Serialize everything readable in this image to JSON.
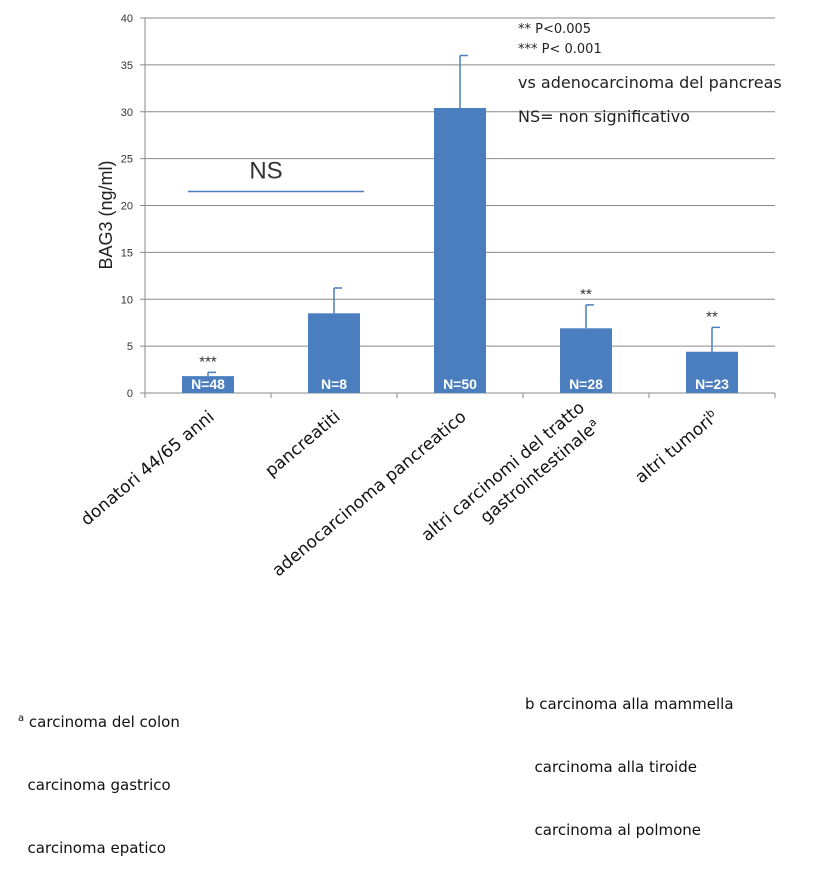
{
  "chart_data": {
    "type": "bar",
    "ylabel": "BAG3 (ng/ml)",
    "ylim": [
      0,
      40
    ],
    "yticks": [
      0,
      5,
      10,
      15,
      20,
      25,
      30,
      35,
      40
    ],
    "grid": true,
    "categories": [
      [
        "donatori 44/65 anni"
      ],
      [
        "pancreatiti"
      ],
      [
        "adenocarcinoma pancreatico"
      ],
      [
        "altri carcinomi del tratto",
        "gastrointestinale",
        "a"
      ],
      [
        "altri tumori",
        "b"
      ]
    ],
    "values": [
      1.8,
      8.5,
      30.4,
      6.9,
      4.4
    ],
    "errors": [
      0.4,
      2.7,
      5.6,
      2.5,
      2.6
    ],
    "n_labels": [
      "N=48",
      "N=8",
      "N=50",
      "N=28",
      "N=23"
    ],
    "significance": [
      "***",
      "",
      "",
      "**",
      "**"
    ],
    "bar_color": "#4a7ebf",
    "ns_bracket": {
      "label": "NS",
      "y": 21.5,
      "from_category": 0,
      "to_category": 1
    }
  },
  "legend": {
    "line1": "** P<0.005",
    "line2": "*** P< 0.001",
    "line3": "vs adenocarcinoma del pancreas",
    "line4": "NS= non significativo"
  },
  "footnotes": {
    "a_marker": "a",
    "a_lines": [
      "carcinoma del colon",
      "carcinoma gastrico",
      "carcinoma epatico"
    ],
    "b_lines": [
      "b carcinoma alla mammella",
      "carcinoma alla tiroide",
      "carcinoma al polmone"
    ]
  }
}
